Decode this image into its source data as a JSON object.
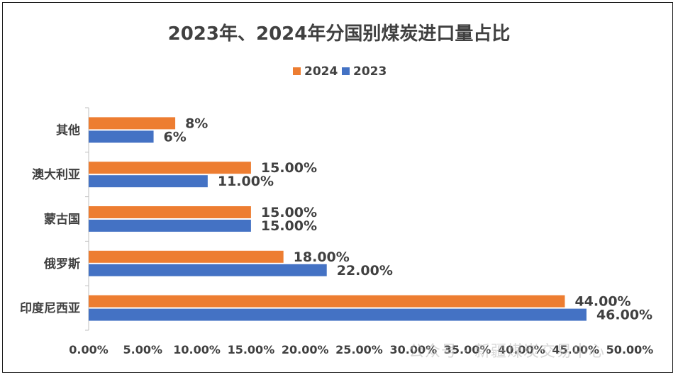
{
  "chart_data": {
    "type": "bar",
    "orientation": "horizontal",
    "title": "2023年、2024年分国别煤炭进口量占比",
    "categories": [
      "其他",
      "澳大利亚",
      "蒙古国",
      "俄罗斯",
      "印度尼西亚"
    ],
    "series": [
      {
        "name": "2024",
        "color": "#ED7D31",
        "values": [
          8,
          15,
          15,
          18,
          44
        ],
        "labels": [
          "8%",
          "15.00%",
          "15.00%",
          "18.00%",
          "44.00%"
        ]
      },
      {
        "name": "2023",
        "color": "#4472C4",
        "values": [
          6,
          11,
          15,
          22,
          46
        ],
        "labels": [
          "6%",
          "11.00%",
          "15.00%",
          "22.00%",
          "46.00%"
        ]
      }
    ],
    "xlim": [
      0,
      50
    ],
    "xticks": [
      "0.00%",
      "5.00%",
      "10.00%",
      "15.00%",
      "20.00%",
      "25.00%",
      "30.00%",
      "35.00%",
      "40.00%",
      "45.00%",
      "50.00%"
    ],
    "legend_position": "top",
    "grid": false
  },
  "watermark": "公众号 · 新疆煤炭交易中心"
}
